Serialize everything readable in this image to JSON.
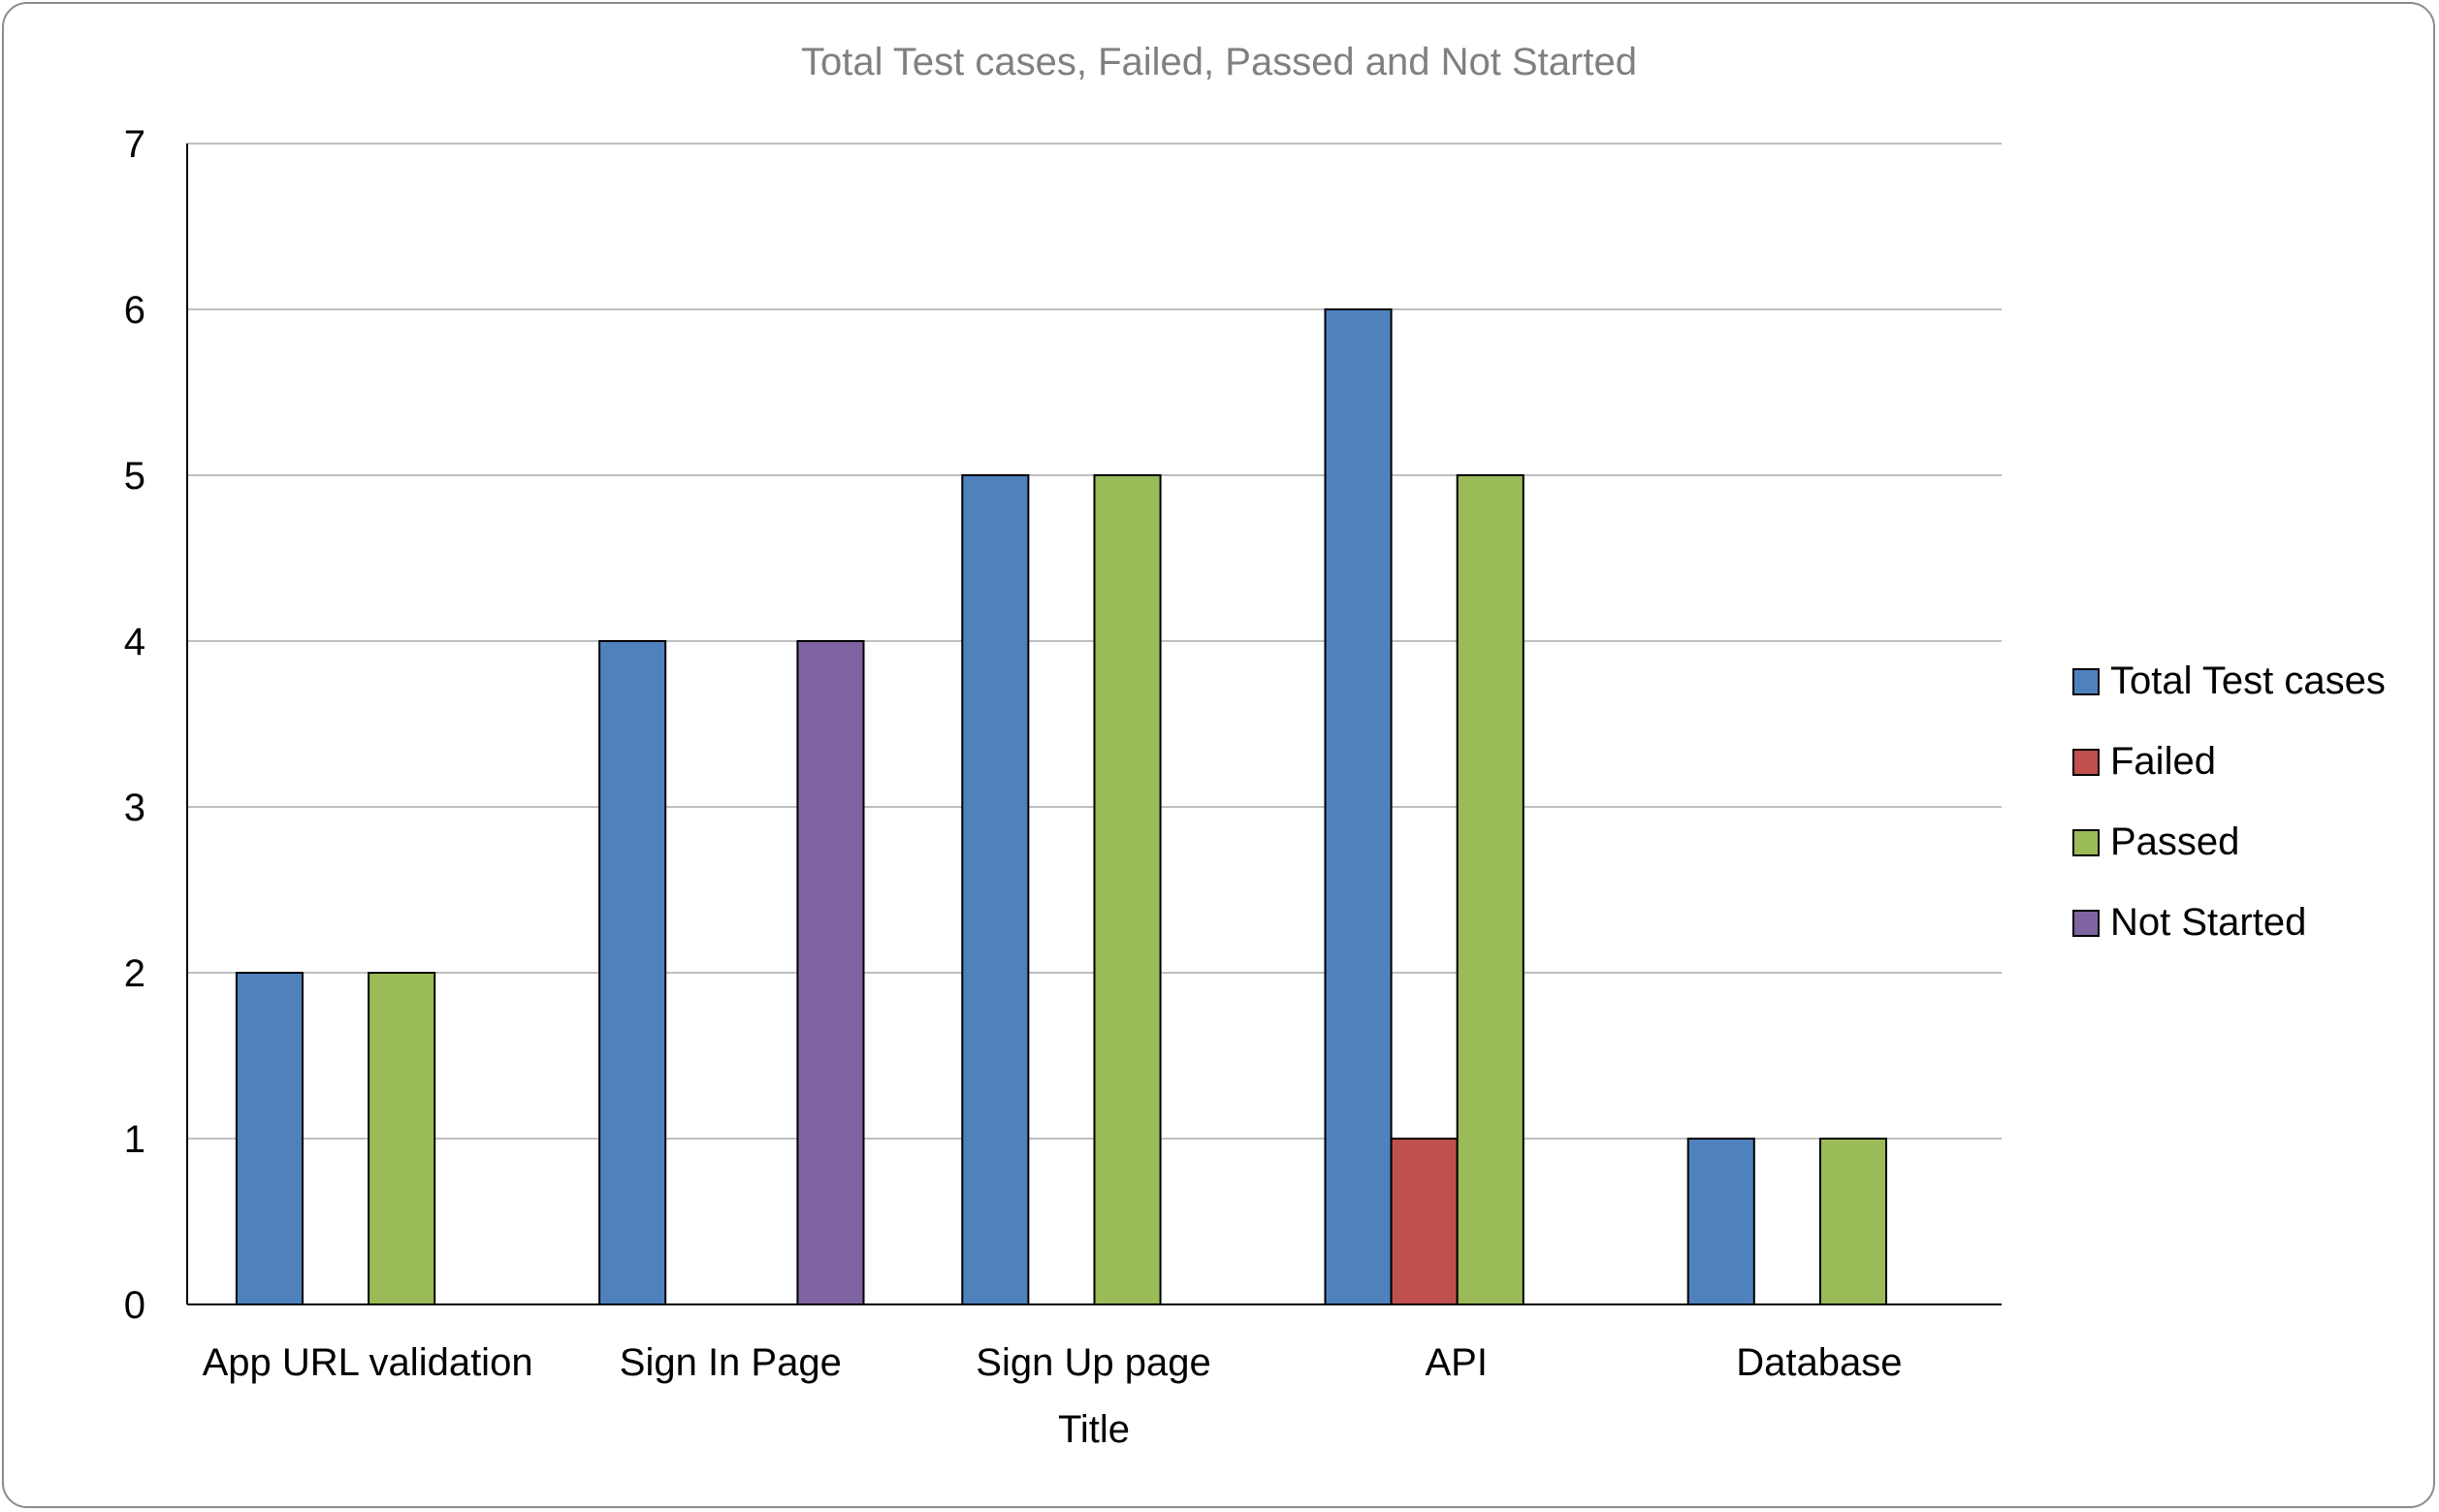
{
  "chart_data": {
    "type": "bar",
    "title": "Total Test cases, Failed, Passed and Not Started",
    "xlabel": "Title",
    "ylabel": "",
    "ylim": [
      0,
      7
    ],
    "yticks": [
      0,
      1,
      2,
      3,
      4,
      5,
      6,
      7
    ],
    "grid": true,
    "legend_position": "right",
    "categories": [
      "App URL validation",
      "Sign In Page",
      "Sign Up page",
      "API",
      "Database"
    ],
    "series": [
      {
        "name": "Total Test cases",
        "color": "#4f81bd",
        "values": [
          2,
          4,
          5,
          6,
          1
        ]
      },
      {
        "name": "Failed",
        "color": "#c0504d",
        "values": [
          0,
          0,
          0,
          1,
          0
        ]
      },
      {
        "name": "Passed",
        "color": "#9bbb59",
        "values": [
          2,
          0,
          5,
          5,
          1
        ]
      },
      {
        "name": "Not Started",
        "color": "#8064a2",
        "values": [
          0,
          4,
          0,
          0,
          0
        ]
      }
    ]
  }
}
